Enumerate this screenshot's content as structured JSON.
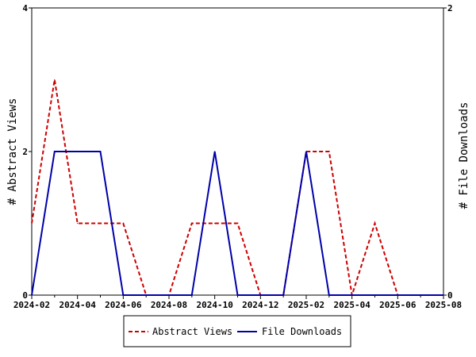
{
  "chart_data": {
    "type": "line",
    "x_labels": [
      "2024-02",
      "2024-03",
      "2024-04",
      "2024-05",
      "2024-06",
      "2024-07",
      "2024-08",
      "2024-09",
      "2024-10",
      "2024-11",
      "2024-12",
      "2025-01",
      "2025-02",
      "2025-03",
      "2025-04",
      "2025-05",
      "2025-06",
      "2025-07",
      "2025-08"
    ],
    "x_tick_labels": [
      "2024-02",
      "2024-04",
      "2024-06",
      "2024-08",
      "2024-10",
      "2024-12",
      "2025-02",
      "2025-04",
      "2025-06",
      "2025-08"
    ],
    "y_left": {
      "label": "# Abstract Views",
      "ylim": [
        0,
        4
      ],
      "ticks": [
        "0",
        "2",
        "4"
      ]
    },
    "y_right": {
      "label": "# File Downloads",
      "ylim": [
        0,
        2
      ],
      "ticks": [
        "0",
        "2"
      ]
    },
    "series": [
      {
        "name": "Abstract Views",
        "axis": "left",
        "color": "#cc0000",
        "style": "dashed",
        "values": [
          1,
          3,
          1,
          1,
          1,
          0,
          0,
          1,
          1,
          1,
          0,
          0,
          2,
          2,
          0,
          1,
          0,
          0,
          0
        ]
      },
      {
        "name": "File Downloads",
        "axis": "right",
        "color": "#0000aa",
        "style": "solid",
        "values": [
          0,
          1,
          1,
          1,
          0,
          0,
          0,
          0,
          1,
          0,
          0,
          0,
          1,
          0,
          0,
          0,
          0,
          0,
          0
        ]
      }
    ],
    "grid": false,
    "legend_position": "bottom-center"
  }
}
